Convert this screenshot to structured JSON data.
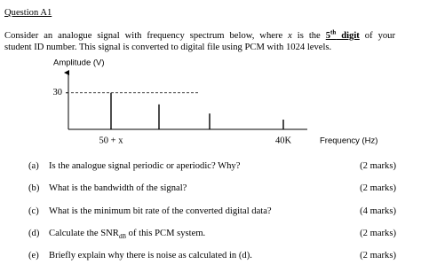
{
  "question": {
    "title": "Question A1",
    "intro": {
      "line1_start": "Consider an analogue signal with frequency spectrum below, where ",
      "variable": "x",
      "line1_mid": " is the ",
      "digit_number": "5",
      "digit_suffix": "th",
      "digit_word": " digit",
      "line1_end": " of your",
      "line2": "student ID number.  This signal is converted to digital file using PCM with 1024 levels."
    },
    "figure": {
      "type": "bar",
      "y_label": "Amplitude (V)",
      "x_label": "Frequency (Hz)",
      "ylim": [
        0,
        48
      ],
      "yticks": [
        30
      ],
      "categories": [
        "50 + x",
        null,
        null,
        "40K"
      ],
      "values": [
        30,
        20.5,
        13,
        8
      ]
    },
    "parts": [
      {
        "label": "(a)",
        "text": "Is the analogue signal periodic or aperiodic? Why?",
        "marks": "(2 marks)"
      },
      {
        "label": "(b)",
        "text": "What is the bandwidth of the signal?",
        "marks": "(2 marks)"
      },
      {
        "label": "(c)",
        "text": "What is the minimum bit rate of the converted digital data?",
        "marks": "(4 marks)"
      },
      {
        "label": "(d)",
        "text": "Calculate the SNR",
        "subscript": "dB",
        "text_after": " of this PCM system.",
        "marks": "(2 marks)"
      },
      {
        "label": "(e)",
        "text": "Briefly explain why there is noise as calculated in (d).",
        "marks": "(2 marks)"
      }
    ]
  }
}
